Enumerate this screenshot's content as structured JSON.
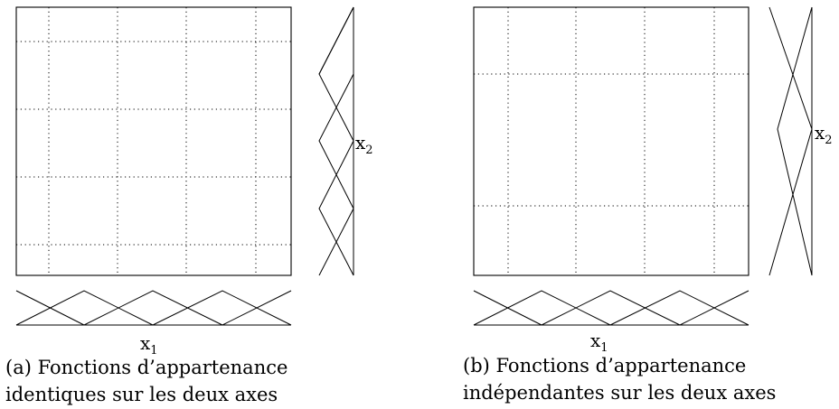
{
  "panels": [
    {
      "id": "a",
      "x_axis": {
        "letter": "x",
        "index": "1"
      },
      "y_axis": {
        "letter": "x",
        "index": "2"
      },
      "x_sets": 5,
      "y_sets": 5,
      "caption": {
        "line1": "(a) Fonctions d’appartenance",
        "line2": "identiques sur les deux axes"
      }
    },
    {
      "id": "b",
      "x_axis": {
        "letter": "x",
        "index": "1"
      },
      "y_axis": {
        "letter": "x",
        "index": "2"
      },
      "x_sets": 5,
      "y_sets": 3,
      "caption": {
        "line1": "(b) Fonctions d’appartenance",
        "line2": "indépendantes sur les deux axes"
      }
    }
  ]
}
